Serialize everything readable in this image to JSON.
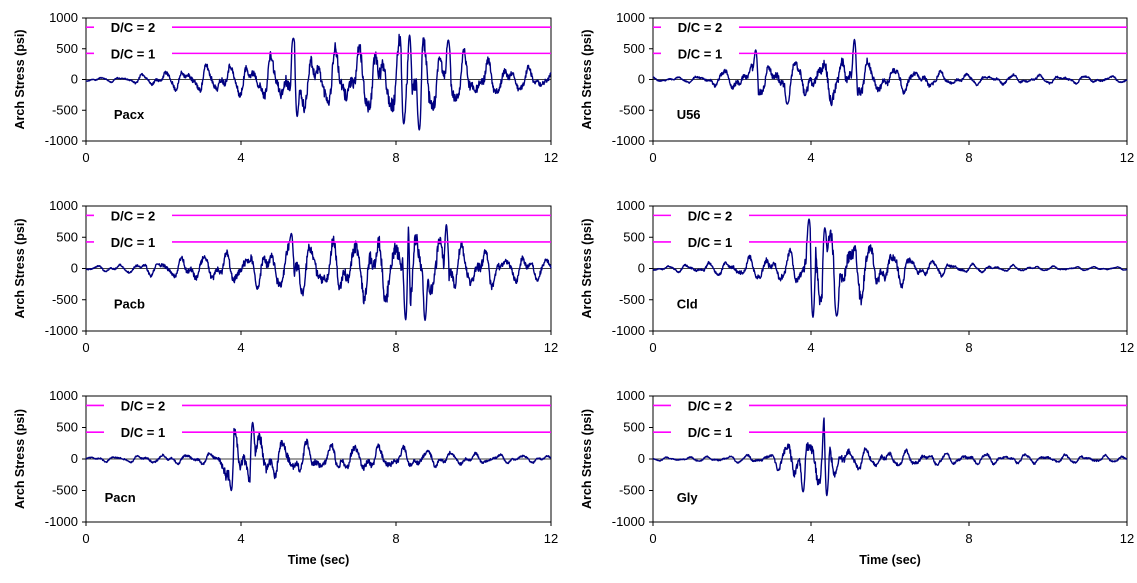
{
  "figure": {
    "x_axis_label": "Time (sec)",
    "y_axis_label": "Arch Stress (psi)"
  },
  "colors": {
    "series": "#000080",
    "dc_lines": "#FF00FF",
    "axes": "#000000",
    "grid": "#000000"
  },
  "chart_data": [
    {
      "type": "line",
      "panel_label": "Pacx",
      "xlabel": "",
      "ylabel": "Arch Stress (psi)",
      "xlim": [
        0,
        12
      ],
      "ylim": [
        -1000,
        1000
      ],
      "xticks": [
        0,
        4,
        8,
        12
      ],
      "yticks": [
        -1000,
        -500,
        0,
        500,
        1000
      ],
      "grid": "horizontal at 0",
      "reference_lines": [
        {
          "label": "D/C = 2",
          "y": 850
        },
        {
          "label": "D/C = 1",
          "y": 425
        }
      ],
      "envelope": [
        [
          0,
          40
        ],
        [
          1,
          50
        ],
        [
          2,
          150
        ],
        [
          3,
          250
        ],
        [
          4,
          300
        ],
        [
          5,
          450
        ],
        [
          5.5,
          600
        ],
        [
          6,
          500
        ],
        [
          7,
          600
        ],
        [
          8,
          700
        ],
        [
          9,
          650
        ],
        [
          10,
          400
        ],
        [
          11,
          250
        ],
        [
          12,
          200
        ]
      ],
      "peaks": [
        {
          "x": 5.35,
          "y": 670
        },
        {
          "x": 5.45,
          "y": -600
        },
        {
          "x": 8.2,
          "y": -720
        },
        {
          "x": 8.6,
          "y": -820
        },
        {
          "x": 8.35,
          "y": 720
        },
        {
          "x": 9.35,
          "y": 640
        }
      ],
      "seed": 11
    },
    {
      "type": "line",
      "panel_label": "U56",
      "xlabel": "",
      "ylabel": "Arch Stress (psi)",
      "xlim": [
        0,
        12
      ],
      "ylim": [
        -1000,
        1000
      ],
      "xticks": [
        0,
        4,
        8,
        12
      ],
      "yticks": [
        -1000,
        -500,
        0,
        500,
        1000
      ],
      "grid": "horizontal at 0",
      "reference_lines": [
        {
          "label": "D/C = 2",
          "y": 850
        },
        {
          "label": "D/C = 1",
          "y": 425
        }
      ],
      "envelope": [
        [
          0,
          40
        ],
        [
          1,
          60
        ],
        [
          2,
          200
        ],
        [
          2.6,
          300
        ],
        [
          3,
          300
        ],
        [
          4,
          350
        ],
        [
          5,
          450
        ],
        [
          5.5,
          300
        ],
        [
          6,
          250
        ],
        [
          7,
          150
        ],
        [
          8,
          100
        ],
        [
          10,
          80
        ],
        [
          12,
          60
        ]
      ],
      "peaks": [
        {
          "x": 2.6,
          "y": 480
        },
        {
          "x": 5.1,
          "y": 650
        },
        {
          "x": 3.4,
          "y": -400
        }
      ],
      "seed": 23
    },
    {
      "type": "line",
      "panel_label": "Pacb",
      "xlabel": "",
      "ylabel": "Arch Stress (psi)",
      "xlim": [
        0,
        12
      ],
      "ylim": [
        -1000,
        1000
      ],
      "xticks": [
        0,
        4,
        8,
        12
      ],
      "yticks": [
        -1000,
        -500,
        0,
        500,
        1000
      ],
      "grid": "horizontal at 0",
      "reference_lines": [
        {
          "label": "D/C = 2",
          "y": 850
        },
        {
          "label": "D/C = 1",
          "y": 425
        }
      ],
      "envelope": [
        [
          0,
          40
        ],
        [
          1,
          80
        ],
        [
          2,
          150
        ],
        [
          3,
          250
        ],
        [
          4,
          300
        ],
        [
          5,
          400
        ],
        [
          5.5,
          500
        ],
        [
          6,
          450
        ],
        [
          7,
          550
        ],
        [
          8,
          650
        ],
        [
          9,
          600
        ],
        [
          10,
          400
        ],
        [
          11,
          250
        ],
        [
          12,
          200
        ]
      ],
      "peaks": [
        {
          "x": 5.3,
          "y": 560
        },
        {
          "x": 8.3,
          "y": 800
        },
        {
          "x": 8.25,
          "y": -820
        },
        {
          "x": 8.75,
          "y": -830
        },
        {
          "x": 9.3,
          "y": 700
        }
      ],
      "seed": 37
    },
    {
      "type": "line",
      "panel_label": "Cld",
      "xlabel": "",
      "ylabel": "Arch Stress (psi)",
      "xlim": [
        0,
        12
      ],
      "ylim": [
        -1000,
        1000
      ],
      "xticks": [
        0,
        4,
        8,
        12
      ],
      "yticks": [
        -1000,
        -500,
        0,
        500,
        1000
      ],
      "grid": "horizontal at 0",
      "reference_lines": [
        {
          "label": "D/C = 2",
          "y": 850
        },
        {
          "label": "D/C = 1",
          "y": 425
        }
      ],
      "envelope": [
        [
          0,
          40
        ],
        [
          1,
          80
        ],
        [
          2,
          150
        ],
        [
          3,
          250
        ],
        [
          3.7,
          300
        ],
        [
          4,
          700
        ],
        [
          5,
          600
        ],
        [
          6,
          350
        ],
        [
          7,
          150
        ],
        [
          8,
          80
        ],
        [
          10,
          40
        ],
        [
          12,
          30
        ]
      ],
      "peaks": [
        {
          "x": 3.95,
          "y": 790
        },
        {
          "x": 4.05,
          "y": -780
        },
        {
          "x": 4.35,
          "y": 650
        },
        {
          "x": 4.65,
          "y": -760
        }
      ],
      "seed": 41
    },
    {
      "type": "line",
      "panel_label": "Pacn",
      "xlabel": "Time (sec)",
      "ylabel": "Arch Stress (psi)",
      "xlim": [
        0,
        12
      ],
      "ylim": [
        -1000,
        1000
      ],
      "xticks": [
        0,
        4,
        8,
        12
      ],
      "yticks": [
        -1000,
        -500,
        0,
        500,
        1000
      ],
      "grid": "horizontal at 0",
      "reference_lines": [
        {
          "label": "D/C = 2",
          "y": 850
        },
        {
          "label": "D/C = 1",
          "y": 425
        }
      ],
      "envelope": [
        [
          0,
          40
        ],
        [
          1,
          60
        ],
        [
          2,
          80
        ],
        [
          3,
          100
        ],
        [
          3.4,
          120
        ],
        [
          3.6,
          500
        ],
        [
          4.5,
          450
        ],
        [
          5,
          350
        ],
        [
          6,
          250
        ],
        [
          7,
          250
        ],
        [
          8,
          200
        ],
        [
          9,
          150
        ],
        [
          10,
          100
        ],
        [
          12,
          60
        ]
      ],
      "peaks": [
        {
          "x": 4.3,
          "y": 580
        },
        {
          "x": 3.75,
          "y": -500
        }
      ],
      "seed": 53
    },
    {
      "type": "line",
      "panel_label": "Gly",
      "xlabel": "Time (sec)",
      "ylabel": "Arch Stress (psi)",
      "xlim": [
        0,
        12
      ],
      "ylim": [
        -1000,
        1000
      ],
      "xticks": [
        0,
        4,
        8,
        12
      ],
      "yticks": [
        -1000,
        -500,
        0,
        500,
        1000
      ],
      "grid": "horizontal at 0",
      "reference_lines": [
        {
          "label": "D/C = 2",
          "y": 850
        },
        {
          "label": "D/C = 1",
          "y": 425
        }
      ],
      "envelope": [
        [
          0,
          30
        ],
        [
          1,
          40
        ],
        [
          2,
          60
        ],
        [
          3,
          100
        ],
        [
          3.5,
          350
        ],
        [
          4,
          450
        ],
        [
          4.5,
          400
        ],
        [
          5,
          200
        ],
        [
          6,
          150
        ],
        [
          7,
          120
        ],
        [
          8,
          100
        ],
        [
          10,
          80
        ],
        [
          12,
          60
        ]
      ],
      "peaks": [
        {
          "x": 4.35,
          "y": 700
        },
        {
          "x": 4.4,
          "y": -580
        },
        {
          "x": 3.8,
          "y": -520
        }
      ],
      "seed": 67
    }
  ]
}
